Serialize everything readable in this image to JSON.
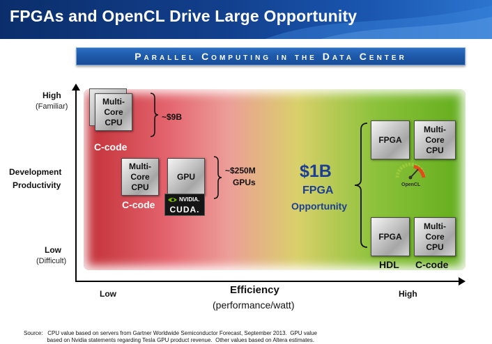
{
  "header": {
    "title": "FPGAs and OpenCL Drive Large Opportunity"
  },
  "banner": {
    "text": "Parallel Computing in the Data Center"
  },
  "y_axis": {
    "label_line1": "Development",
    "label_line2": "Productivity",
    "high": "High",
    "high_sub": "(Familiar)",
    "low": "Low",
    "low_sub": "(Difficult)"
  },
  "x_axis": {
    "label": "Efficiency",
    "sub": "(performance/watt)",
    "low": "Low",
    "high": "High"
  },
  "groups": {
    "cpu_top": {
      "chip_line1": "Multi-Core",
      "chip_line2": "CPU",
      "code": "C-code",
      "value": "~$9B"
    },
    "mid": {
      "cpu_line1": "Multi-Core",
      "cpu_line2": "CPU",
      "gpu": "GPU",
      "code": "C-code",
      "cuda_brand": "NVIDIA.",
      "cuda": "CUDA.",
      "value_line1": "~$250M",
      "value_line2": "GPUs"
    },
    "opportunity": {
      "big": "$1B",
      "fpga": "FPGA",
      "label": "Opportunity"
    },
    "right_top": {
      "fpga": "FPGA",
      "cpu_line1": "Multi-Core",
      "cpu_line2": "CPU",
      "opencl": "OpenCL"
    },
    "right_bottom": {
      "fpga": "FPGA",
      "cpu_line1": "Multi-Core",
      "cpu_line2": "CPU",
      "hdl": "HDL",
      "code": "C-code"
    }
  },
  "source": {
    "line1": "Source:   CPU value based on servers from Gartner Worldwide Semiconductor Forecast, September 2013.  GPU value",
    "line2": "               based on Nvidia statements regarding Tesla GPU product revenue.  Other values based on Altera estimates."
  },
  "colors": {
    "header": "#123f8c",
    "banner": "#1d58a8",
    "opportunity": "#1c3f95",
    "field_red": "#c22f36",
    "field_green": "#62ad1c"
  }
}
